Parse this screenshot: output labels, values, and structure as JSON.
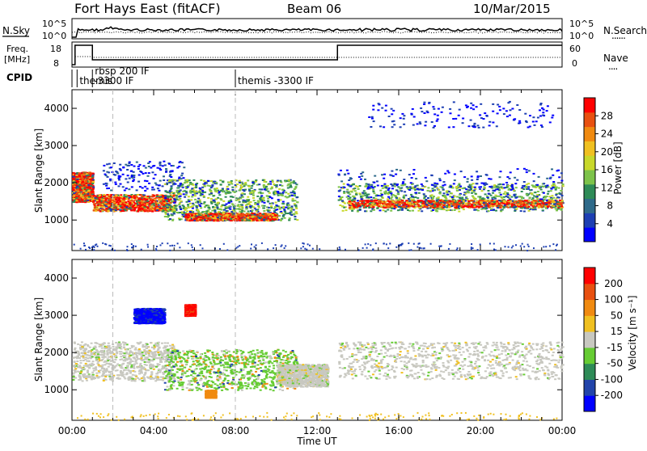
{
  "header": {
    "station": "Fort Hays East (fitACF)",
    "beam": "Beam 06",
    "date": "10/Mar/2015"
  },
  "strip_labels": {
    "nsky": "N.Sky",
    "nsearch": "N.Search",
    "freq_line1": "Freq.",
    "freq_line2": "[MHz]",
    "nave": "Nave",
    "cpid": "CPID",
    "dotted_key": "......",
    "dotted_key2": "....",
    "noise_ticks": [
      "10^5",
      "10^0"
    ],
    "freq_ticks": [
      "18",
      "8"
    ],
    "nave_ticks": [
      "60",
      "0"
    ]
  },
  "cpid_modes": [
    {
      "label_top": "themis",
      "label_bottom": "",
      "start": 0.25
    },
    {
      "label_top": "rbsp 200 IF",
      "label_bottom": "-3300 IF",
      "start": 1.0
    },
    {
      "label_top": "themis -3300 IF",
      "label_bottom": "",
      "start": 8.0
    }
  ],
  "chart_data": [
    {
      "type": "heatmap",
      "panel": "power",
      "ylabel": "Slant Range [km]",
      "xlabel": "Time UT",
      "xlim": [
        0,
        24
      ],
      "ylim": [
        180,
        4500
      ],
      "x_tick_labels": [
        "00:00",
        "04:00",
        "08:00",
        "12:00",
        "16:00",
        "20:00",
        "00:00"
      ],
      "y_tick_labels": [
        "1000",
        "2000",
        "3000",
        "4000"
      ],
      "colorbar": {
        "label": "Power [dB]",
        "ticks": [
          "28",
          "24",
          "20",
          "16",
          "12",
          "8",
          "4"
        ],
        "colors": [
          "#0000ff",
          "#1d3fb3",
          "#2f6a8a",
          "#2e8b57",
          "#7dc34a",
          "#c8d82a",
          "#f0c020",
          "#f08a10",
          "#e85010",
          "#ff0000"
        ]
      },
      "echo_bands": [
        {
          "t": [
            0.0,
            1.0
          ],
          "r": [
            1500,
            2300
          ],
          "level": "high"
        },
        {
          "t": [
            1.0,
            5.0
          ],
          "r": [
            1250,
            1700
          ],
          "level": "high"
        },
        {
          "t": [
            1.5,
            5.5
          ],
          "r": [
            1800,
            2600
          ],
          "level": "low"
        },
        {
          "t": [
            4.5,
            11.0
          ],
          "r": [
            1000,
            2100
          ],
          "level": "mid"
        },
        {
          "t": [
            5.5,
            10.0
          ],
          "r": [
            1000,
            1200
          ],
          "level": "high"
        },
        {
          "t": [
            13.0,
            24.0
          ],
          "r": [
            1250,
            2000
          ],
          "level": "mid"
        },
        {
          "t": [
            13.5,
            24.0
          ],
          "r": [
            1350,
            1550
          ],
          "level": "high"
        },
        {
          "t": [
            13.0,
            24.0
          ],
          "r": [
            1800,
            2400
          ],
          "level": "low"
        },
        {
          "t": [
            14.5,
            23.5
          ],
          "r": [
            3500,
            4200
          ],
          "level": "sparse"
        }
      ]
    },
    {
      "type": "heatmap",
      "panel": "velocity",
      "ylabel": "Slant Range [km]",
      "xlabel": "Time UT",
      "xlim": [
        0,
        24
      ],
      "ylim": [
        180,
        4500
      ],
      "x_tick_labels": [
        "00:00",
        "04:00",
        "08:00",
        "12:00",
        "16:00",
        "20:00",
        "00:00"
      ],
      "y_tick_labels": [
        "1000",
        "2000",
        "3000",
        "4000"
      ],
      "colorbar": {
        "label": "Velocity [m s⁻¹]",
        "ticks": [
          "200",
          "100",
          "50",
          "15",
          "-15",
          "-50",
          "-100",
          "-200"
        ],
        "colors": [
          "#0000ff",
          "#2244aa",
          "#2e8b57",
          "#66cc33",
          "#c8c8c0",
          "#f0c020",
          "#f08a10",
          "#e85010",
          "#ff0000"
        ]
      },
      "echo_bands": [
        {
          "t": [
            0.0,
            5.0
          ],
          "r": [
            1250,
            2300
          ],
          "level": "gray"
        },
        {
          "t": [
            4.5,
            11.0
          ],
          "r": [
            1000,
            2100
          ],
          "level": "green"
        },
        {
          "t": [
            10.0,
            12.5
          ],
          "r": [
            1100,
            1700
          ],
          "level": "gray"
        },
        {
          "t": [
            13.0,
            24.0
          ],
          "r": [
            1300,
            2300
          ],
          "level": "gray"
        },
        {
          "t": [
            3.0,
            4.5
          ],
          "r": [
            2800,
            3200
          ],
          "level": "blue"
        },
        {
          "t": [
            5.5,
            6.0
          ],
          "r": [
            3000,
            3300
          ],
          "level": "red"
        },
        {
          "t": [
            6.5,
            7.0
          ],
          "r": [
            800,
            1000
          ],
          "level": "orange"
        }
      ]
    }
  ]
}
